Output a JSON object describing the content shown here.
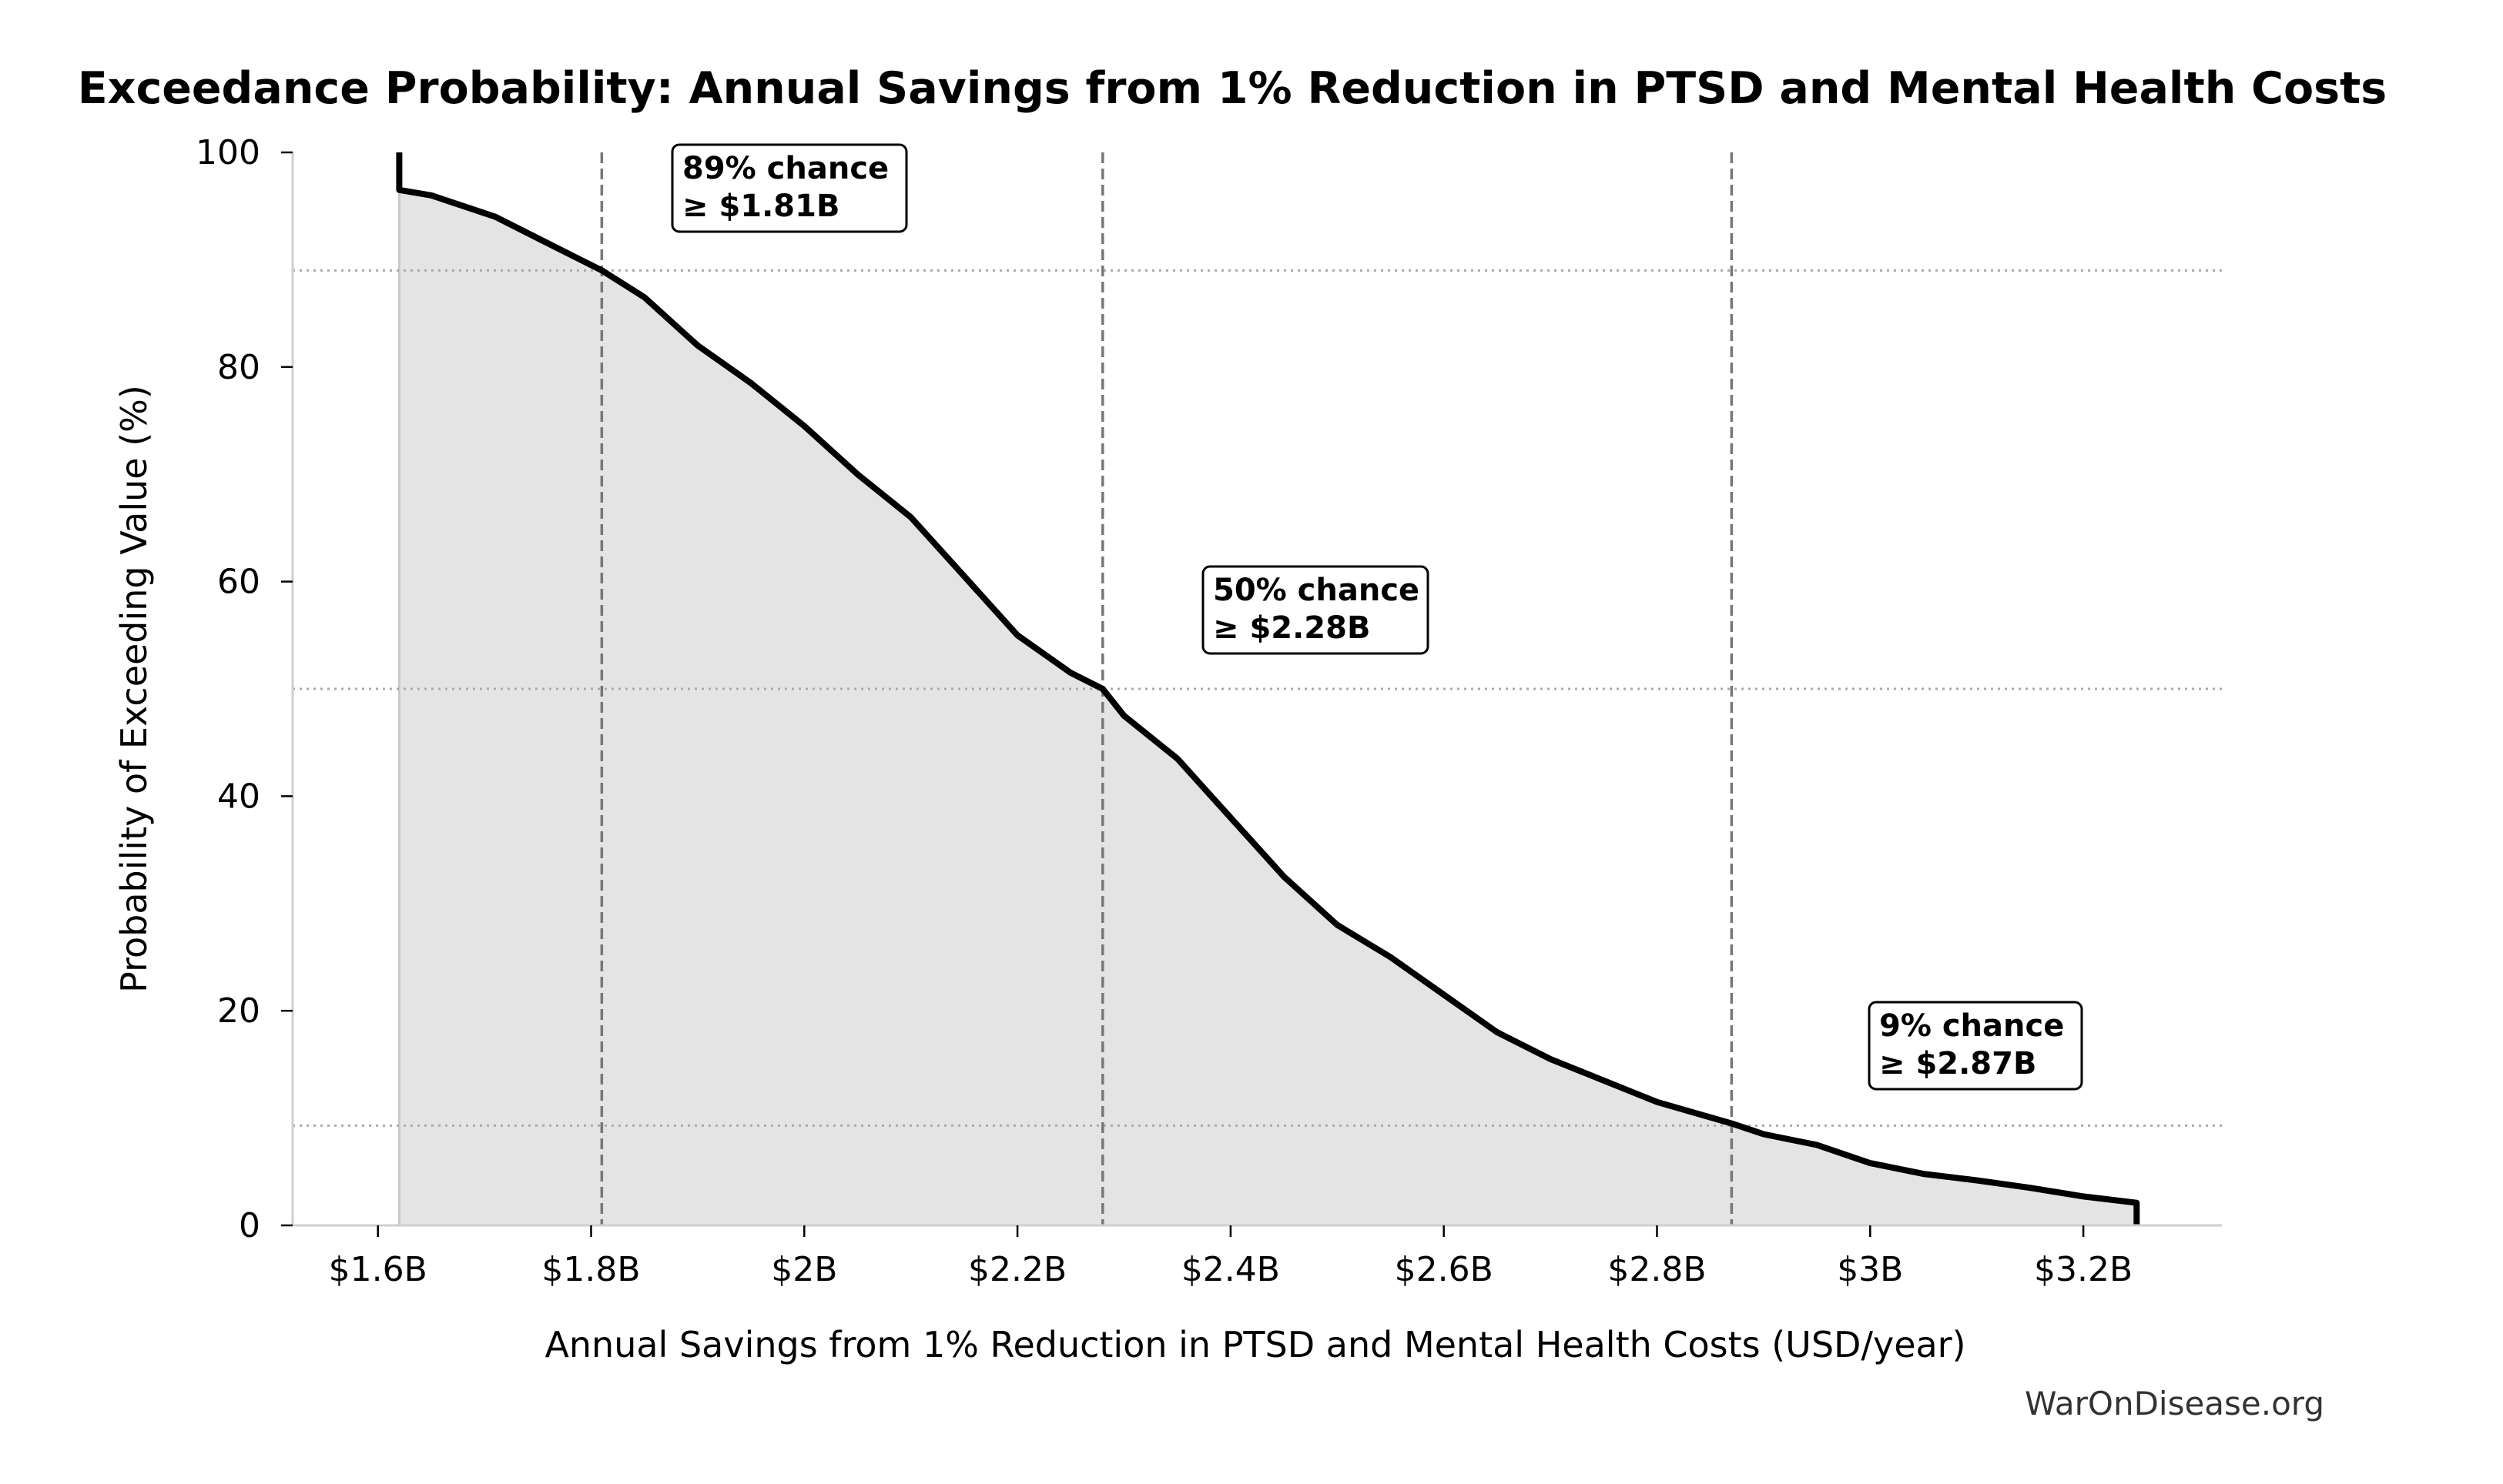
{
  "chart_data": {
    "type": "area",
    "title": "Exceedance Probability: Annual Savings from 1% Reduction in PTSD and Mental Health Costs",
    "xlabel": "Annual Savings from 1% Reduction in PTSD and Mental Health Costs (USD/year)",
    "ylabel": "Probability of Exceeding Value (%)",
    "xlim": [
      1.52,
      3.33
    ],
    "ylim": [
      0,
      100
    ],
    "x_unit": "billion USD/year",
    "x_ticks": [
      1.6,
      1.8,
      2.0,
      2.2,
      2.4,
      2.6,
      2.8,
      3.0,
      3.2
    ],
    "x_tick_labels": [
      "$1.6B",
      "$1.8B",
      "$2B",
      "$2.2B",
      "$2.4B",
      "$2.6B",
      "$2.8B",
      "$3B",
      "$3.2B"
    ],
    "y_ticks": [
      0,
      20,
      40,
      60,
      80,
      100
    ],
    "y_tick_labels": [
      "0",
      "20",
      "40",
      "60",
      "80",
      "100"
    ],
    "grid": false,
    "series": [
      {
        "x": [
          1.62,
          1.62,
          1.65,
          1.68,
          1.71,
          1.75,
          1.78,
          1.81,
          1.85,
          1.9,
          1.95,
          2.0,
          2.05,
          2.1,
          2.15,
          2.2,
          2.25,
          2.28,
          2.3,
          2.35,
          2.4,
          2.45,
          2.5,
          2.55,
          2.6,
          2.65,
          2.7,
          2.75,
          2.8,
          2.87,
          2.9,
          2.95,
          3.0,
          3.05,
          3.1,
          3.15,
          3.2,
          3.25,
          3.25
        ],
        "y": [
          100,
          96.5,
          96,
          95,
          94,
          92,
          90.5,
          89,
          86.5,
          82,
          78.5,
          74.5,
          70,
          66,
          60.5,
          55,
          51.5,
          50,
          47.5,
          43.5,
          38,
          32.5,
          28,
          25,
          21.5,
          18,
          15.5,
          13.5,
          11.5,
          9.5,
          8.5,
          7.5,
          5.8,
          4.8,
          4.2,
          3.5,
          2.7,
          2.1,
          0
        ]
      }
    ],
    "reference_lines": {
      "vertical_x": [
        1.81,
        2.28,
        2.87
      ],
      "horizontal_y": [
        89,
        50,
        9.3
      ]
    },
    "annotations": [
      {
        "line1": "89% chance",
        "line2": "≥ $1.81B"
      },
      {
        "line1": "50% chance",
        "line2": "≥ $2.28B"
      },
      {
        "line1": "9% chance",
        "line2": "≥ $2.87B"
      }
    ],
    "colors": {
      "curve": "#000000",
      "fill": "#e4e4e4",
      "vline": "#777777",
      "hline": "#aaaaaa"
    }
  },
  "watermark": "WarOnDisease.org"
}
